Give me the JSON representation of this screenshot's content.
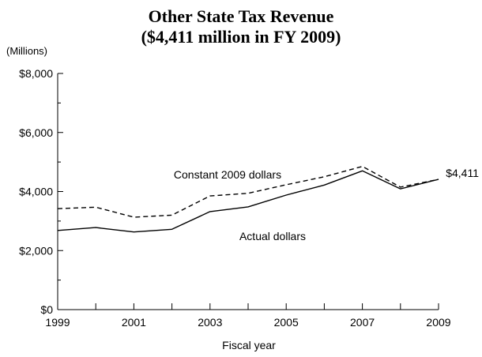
{
  "chart_data": {
    "type": "line",
    "title": "Other State Tax Revenue",
    "subtitle": "($4,411 million in FY 2009)",
    "unit_label": "(Millions)",
    "xlabel": "Fiscal year",
    "ylabel": "",
    "x": [
      1999,
      2000,
      2001,
      2002,
      2003,
      2004,
      2005,
      2006,
      2007,
      2008,
      2009
    ],
    "xlim": [
      1999,
      2009
    ],
    "ylim": [
      0,
      8000
    ],
    "x_tick_labels": [
      "1999",
      "2001",
      "2003",
      "2005",
      "2007",
      "2009"
    ],
    "y_tick_labels": [
      "$0",
      "$2,000",
      "$4,000",
      "$6,000",
      "$8,000"
    ],
    "grid": false,
    "series": [
      {
        "name": "Constant 2009 dollars",
        "style": "dashed",
        "color": "#000000",
        "values": [
          3420,
          3470,
          3130,
          3200,
          3850,
          3940,
          4230,
          4500,
          4850,
          4150,
          4411
        ]
      },
      {
        "name": "Actual dollars",
        "style": "solid",
        "color": "#000000",
        "values": [
          2680,
          2780,
          2630,
          2720,
          3320,
          3480,
          3880,
          4220,
          4700,
          4090,
          4411
        ]
      }
    ],
    "end_label": "$4,411"
  }
}
